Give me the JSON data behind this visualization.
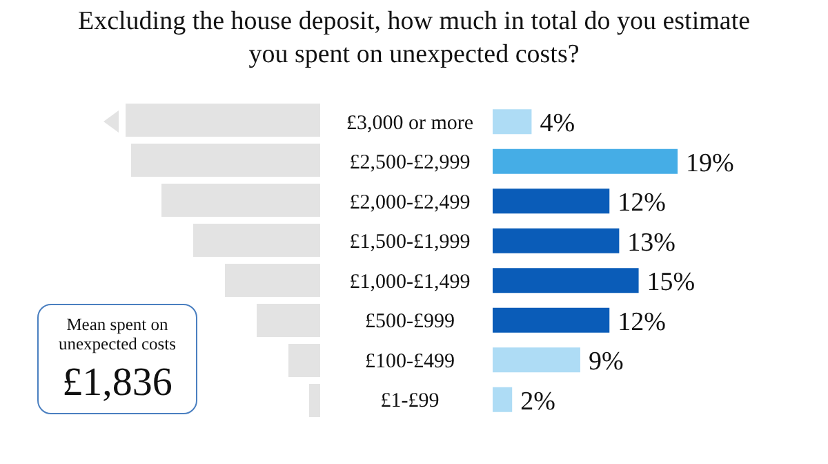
{
  "chart_data": {
    "type": "bar",
    "orientation": "horizontal",
    "title": "Excluding the house deposit, how much in total do you estimate you spent on unexpected costs?",
    "categories": [
      "£3,000 or more",
      "£2,500-£2,999",
      "£2,000-£2,499",
      "£1,500-£1,999",
      "£1,000-£1,499",
      "£500-£999",
      "£100-£499",
      "£1-£99"
    ],
    "values": [
      4,
      19,
      12,
      13,
      15,
      12,
      9,
      2
    ],
    "value_labels": [
      "4%",
      "19%",
      "12%",
      "13%",
      "15%",
      "12%",
      "9%",
      "2%"
    ],
    "colors": [
      "#aedcf5",
      "#45ade6",
      "#0a5cb8",
      "#0a5cb8",
      "#0a5cb8",
      "#0a5cb8",
      "#aedcf5",
      "#aedcf5"
    ],
    "annotations": [
      "Mean spent on unexpected costs",
      "£1,836"
    ]
  }
}
